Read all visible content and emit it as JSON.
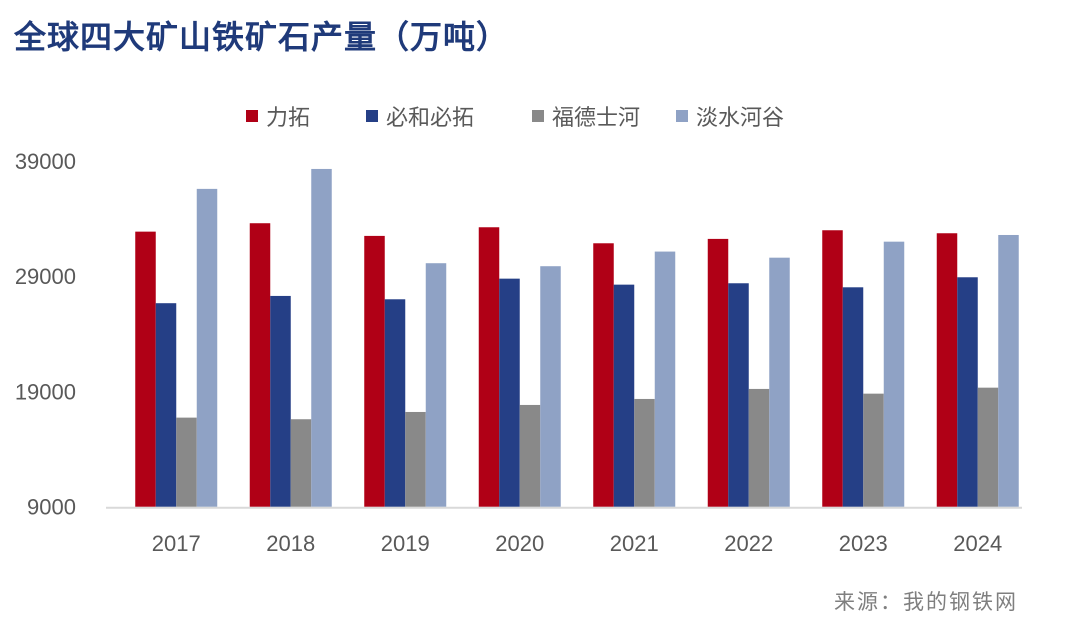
{
  "chart_data": {
    "type": "bar",
    "title": "全球四大矿山铁矿石产量（万吨）",
    "source": "来源：我的钢铁网",
    "categories": [
      "2017",
      "2018",
      "2019",
      "2020",
      "2021",
      "2022",
      "2023",
      "2024"
    ],
    "ylim": [
      9000,
      39000
    ],
    "yticks": [
      9000,
      19000,
      29000,
      39000
    ],
    "grid": false,
    "legend_position": "top",
    "series": [
      {
        "name": "力拓",
        "color": "#b00016",
        "values": [
          32870,
          33600,
          32500,
          33250,
          31860,
          32240,
          32990,
          32730
        ]
      },
      {
        "name": "必和必拓",
        "color": "#253f86",
        "values": [
          26660,
          27290,
          27000,
          28790,
          28270,
          28390,
          28040,
          28910
        ]
      },
      {
        "name": "福德士河",
        "color": "#898989",
        "values": [
          16730,
          16590,
          17220,
          17830,
          18350,
          19220,
          18810,
          19330
        ]
      },
      {
        "name": "淡水河谷",
        "color": "#8fa2c5",
        "values": [
          36580,
          38310,
          30130,
          29870,
          31140,
          30610,
          32000,
          32580
        ]
      }
    ]
  }
}
